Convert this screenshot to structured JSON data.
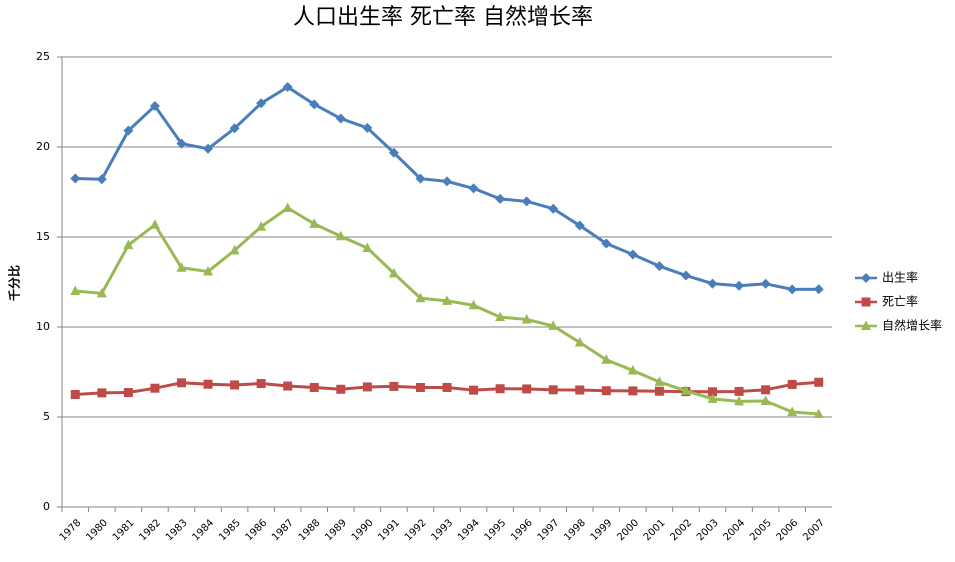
{
  "chart_data": {
    "type": "line",
    "title": "人口出生率 死亡率 自然增长率",
    "y_label": "千分比",
    "categories": [
      "1978",
      "1980",
      "1981",
      "1982",
      "1983",
      "1984",
      "1985",
      "1986",
      "1987",
      "1988",
      "1989",
      "1990",
      "1991",
      "1992",
      "1993",
      "1994",
      "1995",
      "1996",
      "1997",
      "1998",
      "1999",
      "2000",
      "2001",
      "2002",
      "2003",
      "2004",
      "2005",
      "2006",
      "2007"
    ],
    "series": [
      {
        "name": "出生率",
        "color": "#4a7ebb",
        "marker": "diamond",
        "values": [
          18.25,
          18.21,
          20.91,
          22.28,
          20.19,
          19.9,
          21.04,
          22.43,
          23.33,
          22.37,
          21.58,
          21.06,
          19.68,
          18.24,
          18.09,
          17.7,
          17.12,
          16.98,
          16.57,
          15.64,
          14.64,
          14.03,
          13.38,
          12.86,
          12.41,
          12.29,
          12.4,
          12.09,
          12.1
        ]
      },
      {
        "name": "死亡率",
        "color": "#be4b48",
        "marker": "square",
        "values": [
          6.25,
          6.34,
          6.36,
          6.6,
          6.9,
          6.82,
          6.78,
          6.86,
          6.72,
          6.64,
          6.54,
          6.67,
          6.7,
          6.64,
          6.64,
          6.49,
          6.57,
          6.56,
          6.51,
          6.5,
          6.46,
          6.45,
          6.43,
          6.41,
          6.4,
          6.42,
          6.51,
          6.81,
          6.93
        ]
      },
      {
        "name": "自然增长率",
        "color": "#98b954",
        "marker": "triangle",
        "values": [
          12.0,
          11.87,
          14.55,
          15.68,
          13.29,
          13.08,
          14.26,
          15.57,
          16.61,
          15.73,
          15.04,
          14.39,
          12.98,
          11.6,
          11.45,
          11.21,
          10.55,
          10.42,
          10.06,
          9.14,
          8.18,
          7.58,
          6.95,
          6.45,
          6.01,
          5.87,
          5.89,
          5.28,
          5.17
        ]
      }
    ],
    "ylim": [
      0,
      25
    ],
    "yticks": [
      0,
      5,
      10,
      15,
      20,
      25
    ],
    "grid": true,
    "legend": "right"
  }
}
